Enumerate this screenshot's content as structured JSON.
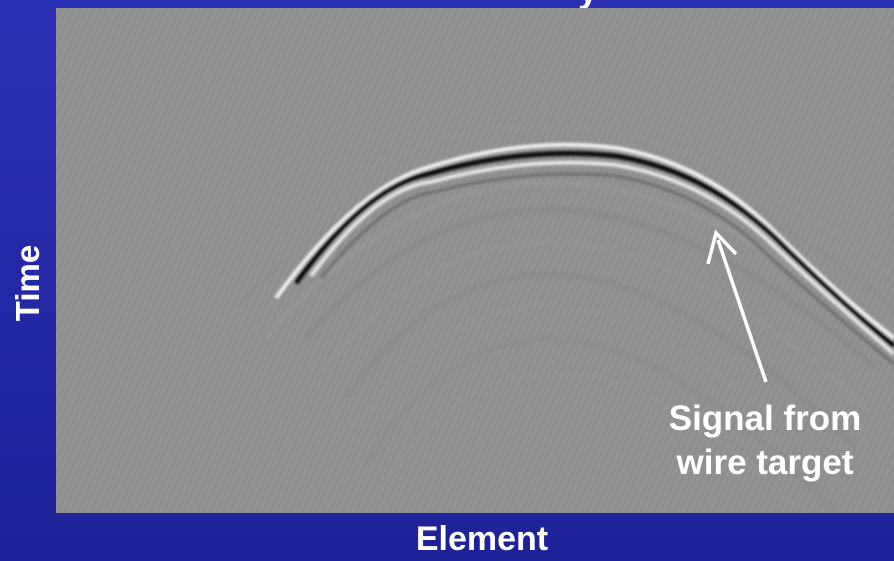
{
  "title_fragment": "y",
  "axes": {
    "x_label": "Element",
    "y_label": "Time"
  },
  "annotation": {
    "line1": "Signal from",
    "line2": "wire target"
  },
  "colors": {
    "background": "#2429a8",
    "image_gray": "#8f8f8f",
    "label_text": "#ffffff"
  }
}
